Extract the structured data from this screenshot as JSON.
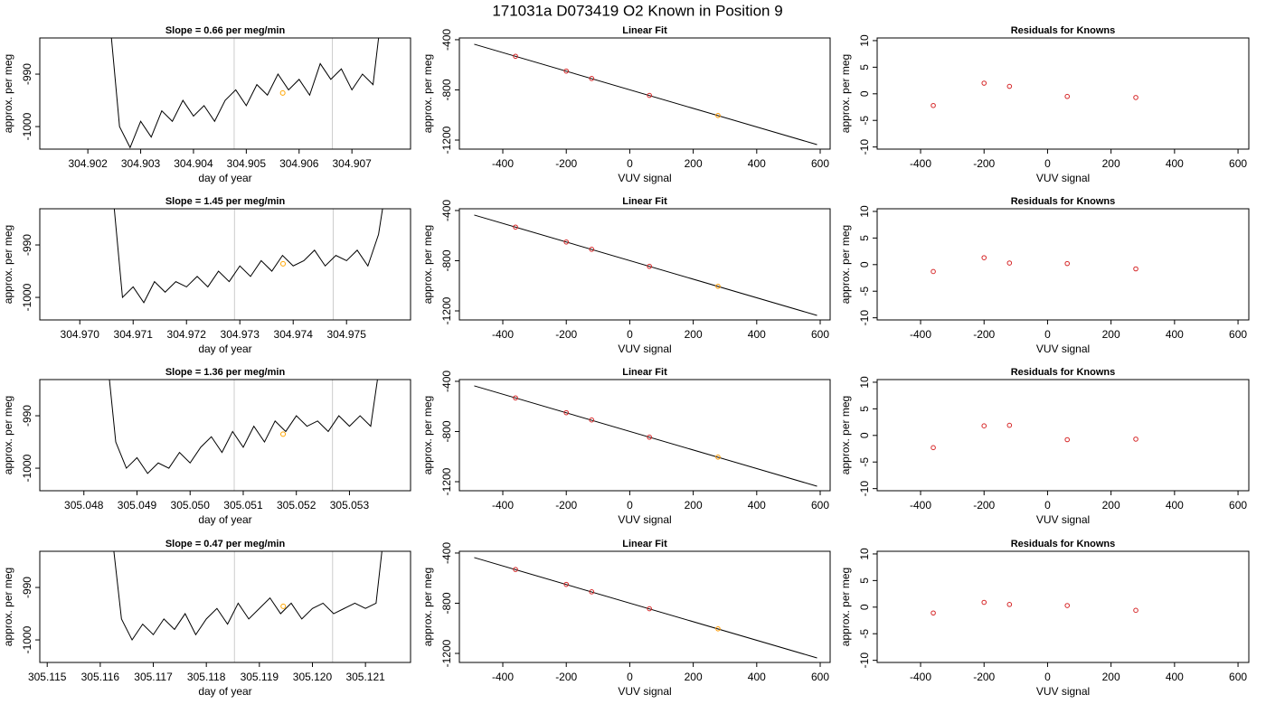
{
  "title": "171031a     D073419   O2 Known in Position  9",
  "chart_data": [
    {
      "type": "line",
      "title": "Slope =  0.66  per meg/min",
      "xlabel": "day of year",
      "ylabel": "approx. per meg",
      "color": "#000000",
      "x": [
        304.9024,
        304.9026,
        304.9028,
        304.903,
        304.9032,
        304.9034,
        304.9036,
        304.9038,
        304.904,
        304.9042,
        304.9044,
        304.9046,
        304.9048,
        304.905,
        304.9052,
        304.9054,
        304.9056,
        304.9058,
        304.906,
        304.9062,
        304.9064,
        304.9066,
        304.9068,
        304.907,
        304.9072,
        304.9074,
        304.9076
      ],
      "values": [
        -978,
        -1000,
        -1004,
        -999,
        -1002,
        -997,
        -999,
        -995,
        -998,
        -996,
        -999,
        -995,
        -993,
        -996,
        -992,
        -994,
        -990,
        -993,
        -991,
        -994,
        -988,
        -991,
        -989,
        -993,
        -990,
        -992,
        -975
      ],
      "xlim": [
        304.90109,
        304.90811
      ],
      "ylim": [
        -1004.3,
        -983.1
      ],
      "xticks": [
        304.902,
        304.903,
        304.904,
        304.905,
        304.906,
        304.907
      ],
      "yticks": [
        -1000,
        -990
      ],
      "vlines": [
        304.90477,
        304.90663
      ],
      "vline_color": "#cccccc",
      "marker": {
        "x": 304.90569,
        "y": -993.6,
        "color": "#ffa500"
      }
    },
    {
      "type": "scatter",
      "title": "Linear Fit",
      "xlabel": "VUV signal",
      "ylabel": "approx. per meg",
      "x": [
        -360,
        -200,
        -120,
        62,
        278
      ],
      "values": [
        -532,
        -650,
        -709,
        -844,
        -1004
      ],
      "colors": [
        "#d62728",
        "#d62728",
        "#d62728",
        "#d62728",
        "#ff9900"
      ],
      "fit_line": {
        "x": [
          -490,
          590
        ],
        "y": [
          -436,
          -1236
        ],
        "color": "#000000"
      },
      "xlim": [
        -536.8,
        631.3
      ],
      "ylim": [
        -1272,
        -386
      ],
      "xticks": [
        -400,
        -200,
        0,
        200,
        400,
        600
      ],
      "yticks": [
        -400,
        -800,
        -1200
      ]
    },
    {
      "type": "scatter",
      "title": "Residuals for Knowns",
      "xlabel": "VUV signal",
      "ylabel": "approx. per meg",
      "x": [
        -360,
        -200,
        -120,
        62,
        278
      ],
      "values": [
        -2.2,
        2.0,
        1.4,
        -0.5,
        -0.7
      ],
      "colors": [
        "#d62728",
        "#d62728",
        "#d62728",
        "#d62728",
        "#d62728"
      ],
      "xlim": [
        -536.8,
        634
      ],
      "ylim": [
        -10.4,
        10.5
      ],
      "xticks": [
        -400,
        -200,
        0,
        200,
        400,
        600
      ],
      "yticks": [
        -10,
        -5,
        0,
        5,
        10
      ]
    },
    {
      "type": "line",
      "title": "Slope =  1.45  per meg/min",
      "xlabel": "day of year",
      "ylabel": "approx. per meg",
      "color": "#000000",
      "x": [
        304.9706,
        304.9708,
        304.971,
        304.9712,
        304.9714,
        304.9716,
        304.9718,
        304.972,
        304.9722,
        304.9724,
        304.9726,
        304.9728,
        304.973,
        304.9732,
        304.9734,
        304.9736,
        304.9738,
        304.974,
        304.9742,
        304.9744,
        304.9746,
        304.9748,
        304.975,
        304.9752,
        304.9754,
        304.9756,
        304.9758
      ],
      "values": [
        -978,
        -1000,
        -998,
        -1001,
        -997,
        -999,
        -997,
        -998,
        -996,
        -998,
        -995,
        -997,
        -994,
        -996,
        -993,
        -995,
        -992,
        -994,
        -993,
        -991,
        -994,
        -992,
        -993,
        -991,
        -994,
        -988,
        -975
      ],
      "xlim": [
        304.96925,
        304.9762
      ],
      "ylim": [
        -1004.3,
        -983.1
      ],
      "xticks": [
        {
          "value": 304.97,
          "label": "304.970"
        },
        304.971,
        304.972,
        304.973,
        304.974,
        304.975
      ],
      "yticks": [
        -1000,
        -990
      ],
      "vlines": [
        304.9729,
        304.97475
      ],
      "vline_color": "#cccccc",
      "marker": {
        "x": 304.97381,
        "y": -993.6,
        "color": "#ffa500"
      }
    },
    {
      "type": "scatter",
      "title": "Linear Fit",
      "xlabel": "VUV signal",
      "ylabel": "approx. per meg",
      "x": [
        -360,
        -200,
        -120,
        62,
        278
      ],
      "values": [
        -532,
        -651,
        -709,
        -845,
        -1004
      ],
      "colors": [
        "#d62728",
        "#d62728",
        "#d62728",
        "#d62728",
        "#ff9900"
      ],
      "fit_line": {
        "x": [
          -490,
          590
        ],
        "y": [
          -436,
          -1236
        ],
        "color": "#000000"
      },
      "xlim": [
        -536.8,
        631.3
      ],
      "ylim": [
        -1272,
        -386
      ],
      "xticks": [
        -400,
        -200,
        0,
        200,
        400,
        600
      ],
      "yticks": [
        -400,
        -800,
        -1200
      ]
    },
    {
      "type": "scatter",
      "title": "Residuals for Knowns",
      "xlabel": "VUV signal",
      "ylabel": "approx. per meg",
      "x": [
        -360,
        -200,
        -120,
        62,
        278
      ],
      "values": [
        -1.3,
        1.3,
        0.3,
        0.2,
        -0.8
      ],
      "colors": [
        "#d62728",
        "#d62728",
        "#d62728",
        "#d62728",
        "#d62728"
      ],
      "xlim": [
        -536.8,
        634
      ],
      "ylim": [
        -10.4,
        10.5
      ],
      "xticks": [
        -400,
        -200,
        0,
        200,
        400,
        600
      ],
      "yticks": [
        -10,
        -5,
        0,
        5,
        10
      ]
    },
    {
      "type": "line",
      "title": "Slope =  1.36  per meg/min",
      "xlabel": "day of year",
      "ylabel": "approx. per meg",
      "color": "#000000",
      "x": [
        305.0484,
        305.0486,
        305.0488,
        305.049,
        305.0492,
        305.0494,
        305.0496,
        305.0498,
        305.05,
        305.0502,
        305.0504,
        305.0506,
        305.0508,
        305.051,
        305.0512,
        305.0514,
        305.0516,
        305.0518,
        305.052,
        305.0522,
        305.0524,
        305.0526,
        305.0528,
        305.053,
        305.0532,
        305.0534,
        305.0536
      ],
      "values": [
        -975,
        -995,
        -1000,
        -998,
        -1001,
        -999,
        -1000,
        -997,
        -999,
        -996,
        -994,
        -997,
        -993,
        -996,
        -992,
        -995,
        -991,
        -993,
        -990,
        -992,
        -991,
        -993,
        -990,
        -992,
        -990,
        -992,
        -978
      ],
      "xlim": [
        305.04717,
        305.05415
      ],
      "ylim": [
        -1004.3,
        -983.1
      ],
      "xticks": [
        305.048,
        305.049,
        {
          "value": 305.05,
          "label": "305.050"
        },
        305.051,
        305.052,
        305.053
      ],
      "yticks": [
        -1000,
        -990
      ],
      "vlines": [
        305.05083,
        305.05268
      ],
      "vline_color": "#cccccc",
      "marker": {
        "x": 305.05175,
        "y": -993.5,
        "color": "#ffa500"
      }
    },
    {
      "type": "scatter",
      "title": "Linear Fit",
      "xlabel": "VUV signal",
      "ylabel": "approx. per meg",
      "x": [
        -360,
        -200,
        -120,
        62,
        278
      ],
      "values": [
        -532,
        -650,
        -708,
        -845,
        -1004
      ],
      "colors": [
        "#d62728",
        "#d62728",
        "#d62728",
        "#d62728",
        "#ff9900"
      ],
      "fit_line": {
        "x": [
          -490,
          590
        ],
        "y": [
          -436,
          -1236
        ],
        "color": "#000000"
      },
      "xlim": [
        -536.8,
        631.3
      ],
      "ylim": [
        -1272,
        -386
      ],
      "xticks": [
        -400,
        -200,
        0,
        200,
        400,
        600
      ],
      "yticks": [
        -400,
        -800,
        -1200
      ]
    },
    {
      "type": "scatter",
      "title": "Residuals for Knowns",
      "xlabel": "VUV signal",
      "ylabel": "approx. per meg",
      "x": [
        -360,
        -200,
        -120,
        62,
        278
      ],
      "values": [
        -2.3,
        1.8,
        1.9,
        -0.8,
        -0.7
      ],
      "colors": [
        "#d62728",
        "#d62728",
        "#d62728",
        "#d62728",
        "#d62728"
      ],
      "xlim": [
        -536.8,
        634
      ],
      "ylim": [
        -10.4,
        10.5
      ],
      "xticks": [
        -400,
        -200,
        0,
        200,
        400,
        600
      ],
      "yticks": [
        -10,
        -5,
        0,
        5,
        10
      ]
    },
    {
      "type": "line",
      "title": "Slope =  0.47  per meg/min",
      "xlabel": "day of year",
      "ylabel": "approx. per meg",
      "color": "#000000",
      "x": [
        305.1162,
        305.1164,
        305.1166,
        305.1168,
        305.117,
        305.1172,
        305.1174,
        305.1176,
        305.1178,
        305.118,
        305.1182,
        305.1184,
        305.1186,
        305.1188,
        305.119,
        305.1192,
        305.1194,
        305.1196,
        305.1198,
        305.12,
        305.1202,
        305.1204,
        305.1206,
        305.1208,
        305.121,
        305.1212,
        305.1214
      ],
      "values": [
        -978,
        -996,
        -1000,
        -997,
        -999,
        -996,
        -998,
        -995,
        -999,
        -996,
        -994,
        -997,
        -993,
        -996,
        -994,
        -992,
        -995,
        -993,
        -996,
        -994,
        -993,
        -995,
        -994,
        -993,
        -994,
        -993,
        -975
      ],
      "xlim": [
        305.11486,
        305.12185
      ],
      "ylim": [
        -1004.3,
        -983.1
      ],
      "xticks": [
        305.115,
        305.116,
        305.117,
        305.118,
        305.119,
        {
          "value": 305.12,
          "label": "305.120"
        },
        305.121
      ],
      "yticks": [
        -1000,
        -990
      ],
      "vlines": [
        305.11853,
        305.12038
      ],
      "vline_color": "#cccccc",
      "marker": {
        "x": 305.11945,
        "y": -993.6,
        "color": "#ffa500"
      }
    },
    {
      "type": "scatter",
      "title": "Linear Fit",
      "xlabel": "VUV signal",
      "ylabel": "approx. per meg",
      "x": [
        -360,
        -200,
        -120,
        62,
        278
      ],
      "values": [
        -531,
        -650,
        -709,
        -844,
        -1004
      ],
      "colors": [
        "#d62728",
        "#d62728",
        "#d62728",
        "#d62728",
        "#ff9900"
      ],
      "fit_line": {
        "x": [
          -490,
          590
        ],
        "y": [
          -436,
          -1236
        ],
        "color": "#000000"
      },
      "xlim": [
        -536.8,
        631.3
      ],
      "ylim": [
        -1272,
        -386
      ],
      "xticks": [
        -400,
        -200,
        0,
        200,
        400,
        600
      ],
      "yticks": [
        -400,
        -800,
        -1200
      ]
    },
    {
      "type": "scatter",
      "title": "Residuals for Knowns",
      "xlabel": "VUV signal",
      "ylabel": "approx. per meg",
      "x": [
        -360,
        -200,
        -120,
        62,
        278
      ],
      "values": [
        -1.1,
        0.9,
        0.5,
        0.3,
        -0.6
      ],
      "colors": [
        "#d62728",
        "#d62728",
        "#d62728",
        "#d62728",
        "#d62728"
      ],
      "xlim": [
        -536.8,
        634
      ],
      "ylim": [
        -10.4,
        10.5
      ],
      "xticks": [
        -400,
        -200,
        0,
        200,
        400,
        600
      ],
      "yticks": [
        -10,
        -5,
        0,
        5,
        10
      ]
    }
  ]
}
